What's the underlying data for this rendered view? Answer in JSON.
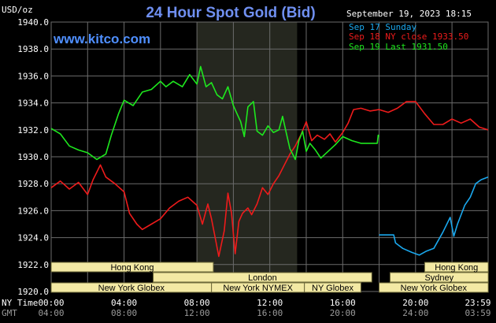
{
  "unit_label": "USD/oz",
  "brand": "www.kitco.com",
  "timestamp": "September 19, 2023 18:15",
  "time_labels": {
    "ny": "NY Time",
    "gmt": "GMT"
  },
  "colors": {
    "background": "#000000",
    "grid": "#6b6b6b",
    "ny_band": "#25271f",
    "sep17": "#1aa8ee",
    "sep18": "#ee1b1b",
    "sep19": "#1ee81e",
    "session_box": "#f3e9a4"
  },
  "sessions": [
    {
      "name": "Hong Kong",
      "row": 0,
      "start": 0.0,
      "end": 8.9
    },
    {
      "name": "London",
      "row": 1,
      "start": 5.6,
      "end": 17.6
    },
    {
      "name": "New York Globex",
      "row": 2,
      "start": 0.0,
      "end": 8.8
    },
    {
      "name": "New York NYMEX",
      "row": 2,
      "start": 8.8,
      "end": 13.9
    },
    {
      "name": "NY Globex",
      "row": 2,
      "start": 13.9,
      "end": 17.0
    },
    {
      "name": "Hong Kong",
      "row": 0,
      "start": 20.5,
      "end": 23.99
    },
    {
      "name": "Sydney",
      "row": 1,
      "start": 18.6,
      "end": 23.99
    },
    {
      "name": "New York Globex",
      "row": 2,
      "start": 18.0,
      "end": 23.99
    }
  ],
  "chart_data": {
    "type": "line",
    "title": "24 Hour Spot Gold (Bid)",
    "ylabel": "USD/oz",
    "ylim": [
      1920,
      1940
    ],
    "xlim": [
      0,
      23.983
    ],
    "grid": true,
    "legend_position": "top-right",
    "ny_session_highlight": [
      8.0,
      13.5
    ],
    "yticks": [
      "1920.0",
      "1922.0",
      "1924.0",
      "1926.0",
      "1928.0",
      "1930.0",
      "1932.0",
      "1934.0",
      "1936.0",
      "1938.0",
      "1940.0"
    ],
    "xticks_ny": [
      "00:00",
      "04:00",
      "08:00",
      "12:00",
      "16:00",
      "20:00",
      "23:59"
    ],
    "xticks_gmt": [
      "04:00",
      "08:00",
      "12:00",
      "16:00",
      "20:00",
      "24:00",
      "03:59"
    ],
    "series": [
      {
        "name": "Sep 17 Sunday",
        "color": "#1aa8ee",
        "points": [
          [
            18.0,
            1924.2
          ],
          [
            18.8,
            1924.2
          ],
          [
            18.9,
            1923.6
          ],
          [
            19.3,
            1923.2
          ],
          [
            19.8,
            1922.9
          ],
          [
            20.2,
            1922.7
          ],
          [
            20.6,
            1923.0
          ],
          [
            21.0,
            1923.2
          ],
          [
            21.5,
            1924.4
          ],
          [
            21.9,
            1925.5
          ],
          [
            22.1,
            1924.1
          ],
          [
            22.3,
            1925.0
          ],
          [
            22.7,
            1926.4
          ],
          [
            23.0,
            1927.0
          ],
          [
            23.3,
            1928.0
          ],
          [
            23.6,
            1928.3
          ],
          [
            23.98,
            1928.5
          ]
        ]
      },
      {
        "name": "Sep 18 NY close 1933.50",
        "color": "#ee1b1b",
        "points": [
          [
            0.0,
            1927.7
          ],
          [
            0.5,
            1928.2
          ],
          [
            1.0,
            1927.6
          ],
          [
            1.5,
            1928.1
          ],
          [
            2.0,
            1927.2
          ],
          [
            2.3,
            1928.3
          ],
          [
            2.7,
            1929.4
          ],
          [
            3.0,
            1928.5
          ],
          [
            3.5,
            1928.0
          ],
          [
            4.0,
            1927.4
          ],
          [
            4.3,
            1925.8
          ],
          [
            4.7,
            1925.0
          ],
          [
            5.0,
            1924.6
          ],
          [
            5.5,
            1925.0
          ],
          [
            6.0,
            1925.4
          ],
          [
            6.5,
            1926.2
          ],
          [
            7.0,
            1926.7
          ],
          [
            7.5,
            1927.0
          ],
          [
            8.0,
            1926.4
          ],
          [
            8.3,
            1925.0
          ],
          [
            8.6,
            1926.5
          ],
          [
            8.8,
            1925.4
          ],
          [
            9.0,
            1924.0
          ],
          [
            9.2,
            1922.6
          ],
          [
            9.5,
            1924.5
          ],
          [
            9.7,
            1927.3
          ],
          [
            9.9,
            1925.8
          ],
          [
            10.1,
            1922.8
          ],
          [
            10.3,
            1925.2
          ],
          [
            10.5,
            1925.8
          ],
          [
            10.8,
            1926.2
          ],
          [
            11.0,
            1925.7
          ],
          [
            11.3,
            1926.5
          ],
          [
            11.6,
            1927.7
          ],
          [
            11.9,
            1927.2
          ],
          [
            12.2,
            1928.0
          ],
          [
            12.5,
            1928.6
          ],
          [
            12.8,
            1929.4
          ],
          [
            13.1,
            1930.2
          ],
          [
            13.4,
            1930.8
          ],
          [
            13.7,
            1931.6
          ],
          [
            14.0,
            1932.6
          ],
          [
            14.3,
            1931.2
          ],
          [
            14.6,
            1931.6
          ],
          [
            15.0,
            1931.3
          ],
          [
            15.3,
            1931.7
          ],
          [
            15.6,
            1931.1
          ],
          [
            16.0,
            1931.8
          ],
          [
            16.3,
            1932.5
          ],
          [
            16.6,
            1933.5
          ],
          [
            17.0,
            1933.6
          ],
          [
            17.5,
            1933.4
          ],
          [
            18.0,
            1933.5
          ],
          [
            18.5,
            1933.3
          ],
          [
            19.0,
            1933.6
          ],
          [
            19.5,
            1934.1
          ],
          [
            20.0,
            1934.1
          ],
          [
            20.5,
            1933.2
          ],
          [
            21.0,
            1932.4
          ],
          [
            21.5,
            1932.4
          ],
          [
            22.0,
            1932.8
          ],
          [
            22.5,
            1932.5
          ],
          [
            23.0,
            1932.8
          ],
          [
            23.5,
            1932.2
          ],
          [
            23.98,
            1932.0
          ]
        ]
      },
      {
        "name": "Sep 19 Last 1931.50",
        "color": "#1ee81e",
        "points": [
          [
            0.0,
            1932.1
          ],
          [
            0.5,
            1931.7
          ],
          [
            1.0,
            1930.8
          ],
          [
            1.5,
            1930.5
          ],
          [
            2.0,
            1930.3
          ],
          [
            2.5,
            1929.8
          ],
          [
            3.0,
            1930.2
          ],
          [
            3.3,
            1931.6
          ],
          [
            3.7,
            1933.2
          ],
          [
            4.0,
            1934.2
          ],
          [
            4.5,
            1933.8
          ],
          [
            5.0,
            1934.8
          ],
          [
            5.5,
            1935.0
          ],
          [
            6.0,
            1935.6
          ],
          [
            6.3,
            1935.2
          ],
          [
            6.7,
            1935.6
          ],
          [
            7.2,
            1935.2
          ],
          [
            7.6,
            1936.1
          ],
          [
            8.0,
            1935.4
          ],
          [
            8.2,
            1936.7
          ],
          [
            8.5,
            1935.2
          ],
          [
            8.8,
            1935.5
          ],
          [
            9.1,
            1934.6
          ],
          [
            9.4,
            1934.3
          ],
          [
            9.7,
            1935.2
          ],
          [
            10.0,
            1933.8
          ],
          [
            10.2,
            1933.2
          ],
          [
            10.4,
            1932.6
          ],
          [
            10.6,
            1931.5
          ],
          [
            10.8,
            1933.7
          ],
          [
            11.1,
            1934.1
          ],
          [
            11.3,
            1931.9
          ],
          [
            11.6,
            1931.6
          ],
          [
            11.9,
            1932.3
          ],
          [
            12.2,
            1931.8
          ],
          [
            12.5,
            1932.0
          ],
          [
            12.7,
            1933.0
          ],
          [
            12.9,
            1931.8
          ],
          [
            13.1,
            1930.6
          ],
          [
            13.4,
            1929.8
          ],
          [
            13.6,
            1931.2
          ],
          [
            13.8,
            1931.9
          ],
          [
            14.0,
            1930.4
          ],
          [
            14.2,
            1931.0
          ],
          [
            14.5,
            1930.5
          ],
          [
            14.8,
            1929.9
          ],
          [
            15.2,
            1930.4
          ],
          [
            15.6,
            1930.9
          ],
          [
            16.0,
            1931.5
          ],
          [
            16.5,
            1931.2
          ],
          [
            17.0,
            1931.0
          ],
          [
            17.5,
            1931.0
          ],
          [
            17.9,
            1931.0
          ],
          [
            17.95,
            1931.6
          ],
          [
            18.0,
            1931.5
          ]
        ]
      }
    ]
  }
}
